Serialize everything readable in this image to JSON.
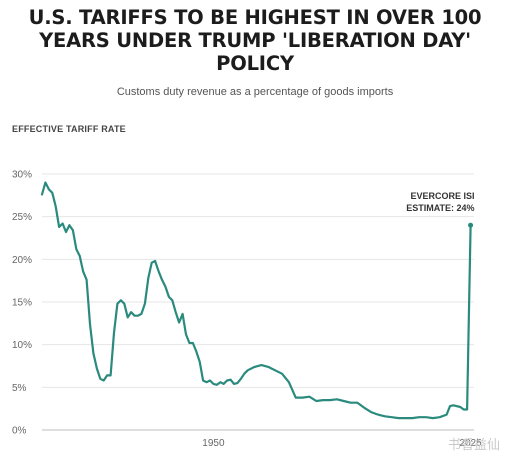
{
  "watermark": "书香益仙",
  "chart_data": {
    "type": "line",
    "title": "U.S. TARIFFS TO BE HIGHEST IN OVER 100 YEARS UNDER TRUMP 'LIBERATION DAY' POLICY",
    "subtitle": "Customs duty revenue as a percentage of goods imports",
    "ylabel": "EFFECTIVE TARIFF RATE",
    "xlabel": "",
    "xlim": [
      1900,
      2026
    ],
    "ylim": [
      0,
      30
    ],
    "yticks": [
      0,
      5,
      10,
      15,
      20,
      25,
      30
    ],
    "ytick_labels": [
      "0%",
      "5%",
      "10%",
      "15%",
      "20%",
      "25%",
      "30%"
    ],
    "xticks": [
      1950,
      2025
    ],
    "xtick_labels": [
      "1950",
      "2025"
    ],
    "grid": true,
    "line_color": "#2a8a7e",
    "annotation": {
      "lines": [
        "EVERCORE ISI",
        "ESTIMATE: 24%"
      ],
      "x": 2025,
      "y": 24
    },
    "series": [
      {
        "x": [
          1900,
          1901,
          1902,
          1903,
          1904,
          1905,
          1906,
          1907,
          1908,
          1909,
          1910,
          1911,
          1912,
          1913,
          1914,
          1915,
          1916,
          1917,
          1918,
          1919,
          1920,
          1921,
          1922,
          1923,
          1924,
          1925,
          1926,
          1927,
          1928,
          1929,
          1930,
          1931,
          1932,
          1933,
          1934,
          1935,
          1936,
          1937,
          1938,
          1939,
          1940,
          1941,
          1942,
          1943,
          1944,
          1945,
          1946,
          1947,
          1948,
          1949,
          1950,
          1951,
          1952,
          1953,
          1954,
          1955,
          1956,
          1957,
          1958,
          1959,
          1960,
          1962,
          1964,
          1966,
          1968,
          1970,
          1972,
          1974,
          1976,
          1978,
          1980,
          1982,
          1984,
          1986,
          1988,
          1990,
          1992,
          1994,
          1996,
          1998,
          2000,
          2002,
          2004,
          2006,
          2008,
          2010,
          2012,
          2014,
          2016,
          2018,
          2019,
          2020,
          2022,
          2023,
          2024,
          2025
        ],
        "y": [
          27.6,
          29.0,
          28.2,
          27.8,
          26.2,
          23.8,
          24.2,
          23.2,
          24.0,
          23.4,
          21.2,
          20.4,
          18.6,
          17.6,
          12.4,
          9.0,
          7.2,
          6.0,
          5.8,
          6.4,
          6.4,
          11.4,
          14.8,
          15.2,
          14.8,
          13.2,
          13.8,
          13.4,
          13.4,
          13.6,
          14.8,
          17.8,
          19.6,
          19.8,
          18.6,
          17.6,
          16.8,
          15.6,
          15.2,
          13.8,
          12.6,
          13.6,
          11.2,
          10.2,
          10.2,
          9.2,
          8.0,
          5.8,
          5.6,
          5.8,
          5.4,
          5.3,
          5.6,
          5.4,
          5.8,
          5.9,
          5.4,
          5.5,
          6.0,
          6.6,
          7.0,
          7.4,
          7.6,
          7.4,
          7.0,
          6.6,
          5.6,
          3.8,
          3.8,
          3.9,
          3.4,
          3.5,
          3.5,
          3.6,
          3.4,
          3.2,
          3.2,
          2.6,
          2.1,
          1.8,
          1.6,
          1.5,
          1.4,
          1.4,
          1.4,
          1.5,
          1.5,
          1.4,
          1.5,
          1.8,
          2.8,
          2.9,
          2.7,
          2.4,
          2.4,
          24.0
        ]
      }
    ]
  }
}
